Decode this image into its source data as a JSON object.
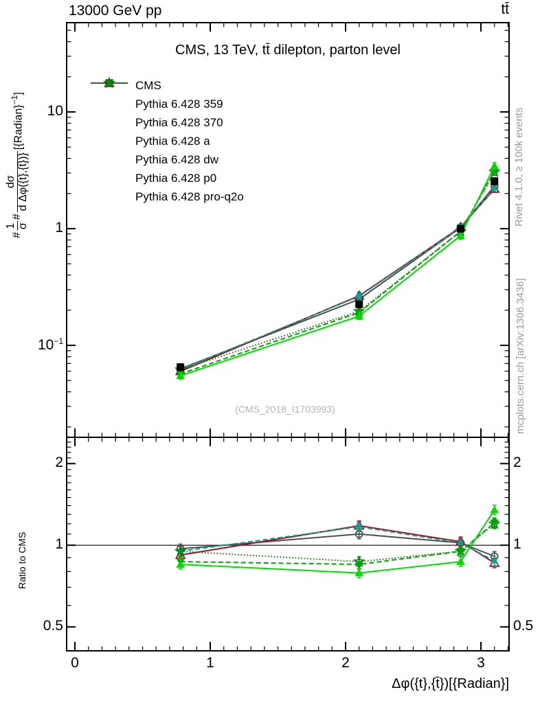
{
  "header": {
    "left": "13000 GeV pp",
    "right": "tt̄"
  },
  "title": "CMS, 13 TeV, tt̄ dilepton, parton level",
  "watermark": "(CMS_2018_I1703993)",
  "side_notes": {
    "top": "Rivet 4.1.0, ≥ 100k events",
    "bottom": "mcplots.cern.ch [arXiv:1306.3436]"
  },
  "axes": {
    "y_label": {
      "prefix": "#",
      "frac1_num": "1",
      "frac1_den": "σ",
      "mid": "#",
      "frac2_num": "dσ",
      "frac2_den": "d Δφ({t},{t̄})}",
      "unit_pre": "[{Radian}",
      "unit_sup": "−1",
      "unit_post": "]"
    },
    "x_label": "Δφ({t},{t̄})[{Radian}]",
    "ratio_label": "Ratio to CMS",
    "main_y_ticks": [
      {
        "value": 10,
        "text": "10",
        "sup": ""
      },
      {
        "value": 1,
        "text": "1",
        "sup": ""
      },
      {
        "value": 0.1,
        "text": "10",
        "sup": "−1"
      }
    ],
    "ratio_y_ticks": [
      {
        "value": 2,
        "text": "2"
      },
      {
        "value": 1,
        "text": "1"
      },
      {
        "value": 0.5,
        "text": "0.5"
      }
    ],
    "x_ticks": [
      {
        "value": 0,
        "text": "0"
      },
      {
        "value": 1,
        "text": "1"
      },
      {
        "value": 2,
        "text": "2"
      },
      {
        "value": 3,
        "text": "3"
      }
    ]
  },
  "chart_data": {
    "type": "line",
    "title": "CMS, 13 TeV, tt̄ dilepton, parton level",
    "xlabel": "Δφ({t},{t̄})[{Radian}]",
    "ylabel_main": "#1/σ # dσ/d Δφ({t},{t̄}) [{Radian}^-1]",
    "ylabel_ratio": "Ratio to CMS",
    "y_scale": "log",
    "grid": false,
    "legend_position": "top-left",
    "x": [
      0.78,
      2.1,
      2.85,
      3.1
    ],
    "x_range": [
      -0.061,
      3.208
    ],
    "main_ylim": [
      0.0163,
      58.2
    ],
    "ratio_ylim": [
      0.408,
      2.5
    ],
    "error_bars_visible": true,
    "series": [
      {
        "name": "CMS",
        "color": "#000000",
        "marker": "square-filled",
        "line": "none",
        "in_ratio": false,
        "main": [
          0.065,
          0.225,
          1.0,
          2.55
        ],
        "ratio": [
          1,
          1,
          1,
          1
        ]
      },
      {
        "name": "Pythia 6.428 359",
        "color": "#00A98E",
        "marker": "square-filled-small",
        "line": "dashed",
        "in_ratio": true,
        "main": [
          0.062,
          0.263,
          1.02,
          2.23
        ],
        "ratio": [
          0.95,
          1.17,
          1.02,
          0.875
        ]
      },
      {
        "name": "Pythia 6.428 370",
        "color": "#A50D28",
        "marker": "triangle-open",
        "line": "solid",
        "in_ratio": true,
        "main": [
          0.06,
          0.266,
          1.03,
          2.19
        ],
        "ratio": [
          0.92,
          1.18,
          1.03,
          0.86
        ]
      },
      {
        "name": "Pythia 6.428 a",
        "color": "#00DC00",
        "marker": "triangle-filled",
        "line": "solid",
        "in_ratio": true,
        "main": [
          0.055,
          0.178,
          0.87,
          3.44
        ],
        "ratio": [
          0.85,
          0.79,
          0.87,
          1.35
        ]
      },
      {
        "name": "Pythia 6.428 dw",
        "color": "#00A300",
        "marker": "triangle-down-filled",
        "line": "dashed",
        "in_ratio": true,
        "main": [
          0.057,
          0.191,
          0.95,
          3.09
        ],
        "ratio": [
          0.87,
          0.85,
          0.95,
          1.21
        ]
      },
      {
        "name": "Pythia 6.428 p0",
        "color": "#4D4D4D",
        "marker": "circle-open",
        "line": "solid",
        "in_ratio": true,
        "main": [
          0.063,
          0.248,
          1.02,
          2.32
        ],
        "ratio": [
          0.97,
          1.1,
          1.02,
          0.91
        ]
      },
      {
        "name": "Pythia 6.428 pro-q2o",
        "color": "#077A07",
        "marker": "star-open",
        "line": "dotted",
        "in_ratio": true,
        "main": [
          0.062,
          0.196,
          0.95,
          3.06
        ],
        "ratio": [
          0.95,
          0.87,
          0.95,
          1.2
        ]
      }
    ]
  }
}
